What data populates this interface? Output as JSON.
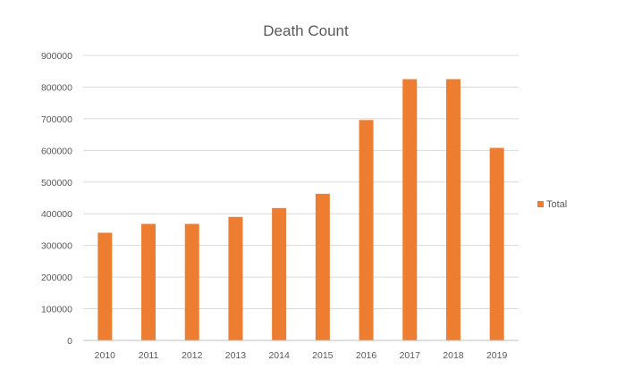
{
  "chart_data": {
    "type": "bar",
    "title": "Death Count",
    "xlabel": "",
    "ylabel": "",
    "categories": [
      "2010",
      "2011",
      "2012",
      "2013",
      "2014",
      "2015",
      "2016",
      "2017",
      "2018",
      "2019"
    ],
    "series": [
      {
        "name": "Total",
        "color": "#ED7D31",
        "values": [
          340000,
          368000,
          368000,
          390000,
          418000,
          463000,
          696000,
          825000,
          825000,
          608000
        ]
      }
    ],
    "ylim": [
      0,
      900000
    ],
    "yticks": [
      "0",
      "100000",
      "200000",
      "300000",
      "400000",
      "500000",
      "600000",
      "700000",
      "800000",
      "900000"
    ],
    "grid": true,
    "gridColor": "#D9D9D9",
    "axisColor": "#BFBFBF",
    "legend_position": "right"
  }
}
